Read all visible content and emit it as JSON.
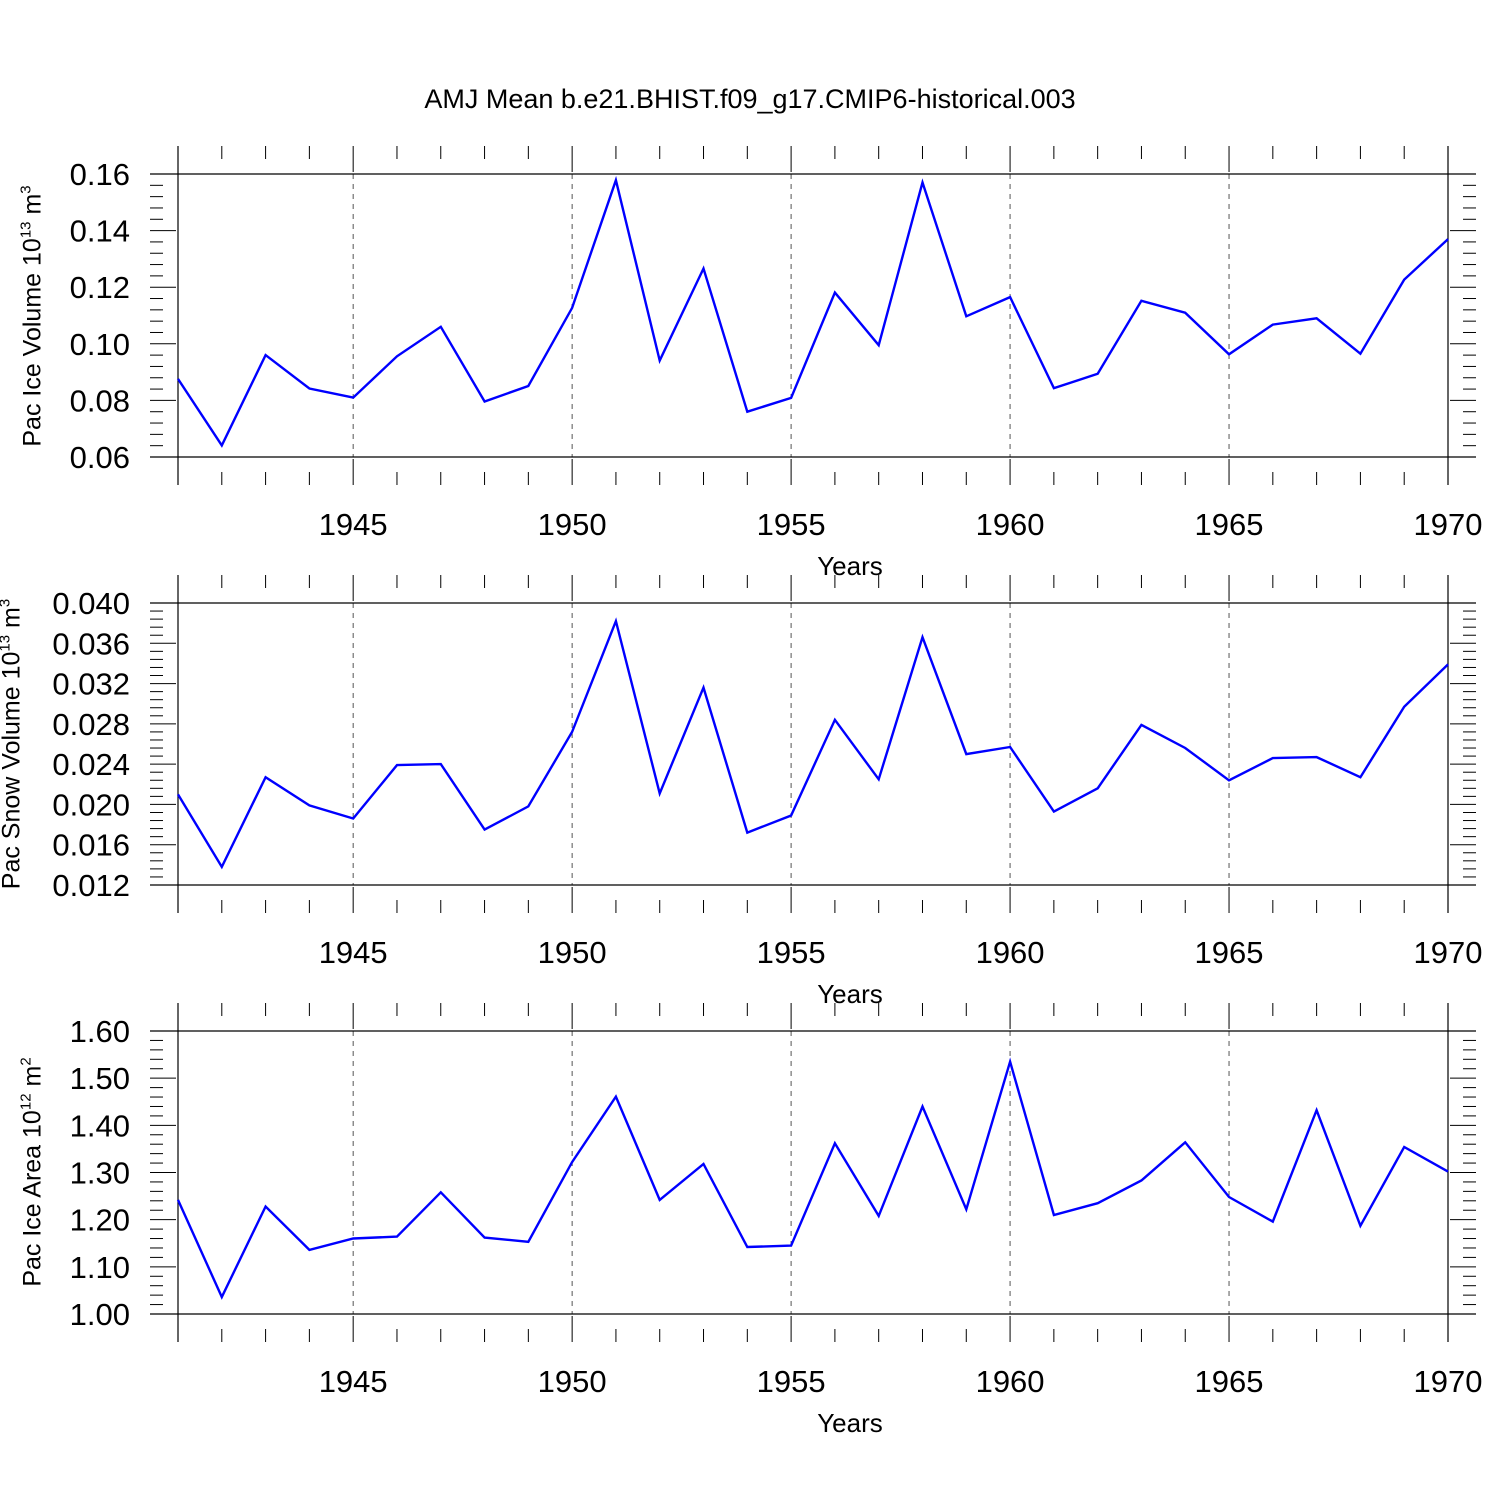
{
  "figure_title": "AMJ Mean b.e21.BHIST.f09_g17.CMIP6-historical.003",
  "colors": {
    "line": "#0000ff",
    "axes": "#000000",
    "grid": "#555555"
  },
  "chart_data": [
    {
      "type": "line",
      "title": "AMJ Mean b.e21.BHIST.f09_g17.CMIP6-historical.003",
      "xlabel": "Years",
      "ylabel_text": "Pac Ice Volume 10",
      "ylabel_exp": "13",
      "ylabel_unit": " m",
      "ylabel_unit_exp": "3",
      "xlim": [
        1941,
        1970
      ],
      "ylim": [
        0.06,
        0.16
      ],
      "yticks": [
        0.06,
        0.08,
        0.1,
        0.12,
        0.14,
        0.16
      ],
      "ytick_labels": [
        "0.06",
        "0.08",
        "0.10",
        "0.12",
        "0.14",
        "0.16"
      ],
      "xticks": [
        1945,
        1950,
        1955,
        1960,
        1965,
        1970
      ],
      "xtick_labels": [
        "1945",
        "1950",
        "1955",
        "1960",
        "1965",
        "1970"
      ],
      "grid": "vertical dashed at major x ticks",
      "x": [
        1941,
        1942,
        1943,
        1944,
        1945,
        1946,
        1947,
        1948,
        1949,
        1950,
        1951,
        1952,
        1953,
        1954,
        1955,
        1956,
        1957,
        1958,
        1959,
        1960,
        1961,
        1962,
        1963,
        1964,
        1965,
        1966,
        1967,
        1968,
        1969,
        1970
      ],
      "series": [
        {
          "name": "Pac Ice Volume",
          "values": [
            0.0876,
            0.0641,
            0.096,
            0.0842,
            0.081,
            0.0956,
            0.106,
            0.0796,
            0.0851,
            0.1127,
            0.1578,
            0.0941,
            0.1266,
            0.076,
            0.0809,
            0.1181,
            0.0995,
            0.157,
            0.1097,
            0.1165,
            0.0843,
            0.0894,
            0.1152,
            0.111,
            0.0963,
            0.1068,
            0.109,
            0.0965,
            0.1227,
            0.137
          ]
        }
      ]
    },
    {
      "type": "line",
      "xlabel": "Years",
      "ylabel_text": "Pac Snow Volume 10",
      "ylabel_exp": "13",
      "ylabel_unit": " m",
      "ylabel_unit_exp": "3",
      "xlim": [
        1941,
        1970
      ],
      "ylim": [
        0.012,
        0.04
      ],
      "yticks": [
        0.012,
        0.016,
        0.02,
        0.024,
        0.028,
        0.032,
        0.036,
        0.04
      ],
      "ytick_labels": [
        "0.012",
        "0.016",
        "0.020",
        "0.024",
        "0.028",
        "0.032",
        "0.036",
        "0.040"
      ],
      "xticks": [
        1945,
        1950,
        1955,
        1960,
        1965,
        1970
      ],
      "xtick_labels": [
        "1945",
        "1950",
        "1955",
        "1960",
        "1965",
        "1970"
      ],
      "grid": "vertical dashed at major x ticks",
      "x": [
        1941,
        1942,
        1943,
        1944,
        1945,
        1946,
        1947,
        1948,
        1949,
        1950,
        1951,
        1952,
        1953,
        1954,
        1955,
        1956,
        1957,
        1958,
        1959,
        1960,
        1961,
        1962,
        1963,
        1964,
        1965,
        1966,
        1967,
        1968,
        1969,
        1970
      ],
      "series": [
        {
          "name": "Pac Snow Volume",
          "values": [
            0.021,
            0.0138,
            0.0227,
            0.0199,
            0.0186,
            0.0239,
            0.024,
            0.0175,
            0.0198,
            0.0272,
            0.0382,
            0.0211,
            0.0316,
            0.0172,
            0.0189,
            0.0284,
            0.0225,
            0.0366,
            0.025,
            0.0257,
            0.0193,
            0.0216,
            0.0279,
            0.0256,
            0.0224,
            0.0246,
            0.0247,
            0.0227,
            0.0297,
            0.0339
          ]
        }
      ]
    },
    {
      "type": "line",
      "xlabel": "Years",
      "ylabel_text": "Pac Ice Area 10",
      "ylabel_exp": "12",
      "ylabel_unit": " m",
      "ylabel_unit_exp": "2",
      "xlim": [
        1941,
        1970
      ],
      "ylim": [
        1.0,
        1.6
      ],
      "yticks": [
        1.0,
        1.1,
        1.2,
        1.3,
        1.4,
        1.5,
        1.6
      ],
      "ytick_labels": [
        "1.00",
        "1.10",
        "1.20",
        "1.30",
        "1.40",
        "1.50",
        "1.60"
      ],
      "xticks": [
        1945,
        1950,
        1955,
        1960,
        1965,
        1970
      ],
      "xtick_labels": [
        "1945",
        "1950",
        "1955",
        "1960",
        "1965",
        "1970"
      ],
      "grid": "vertical dashed at major x ticks",
      "x": [
        1941,
        1942,
        1943,
        1944,
        1945,
        1946,
        1947,
        1948,
        1949,
        1950,
        1951,
        1952,
        1953,
        1954,
        1955,
        1956,
        1957,
        1958,
        1959,
        1960,
        1961,
        1962,
        1963,
        1964,
        1965,
        1966,
        1967,
        1968,
        1969,
        1970
      ],
      "series": [
        {
          "name": "Pac Ice Area",
          "values": [
            1.242,
            1.036,
            1.228,
            1.136,
            1.16,
            1.164,
            1.258,
            1.162,
            1.153,
            1.322,
            1.461,
            1.242,
            1.318,
            1.142,
            1.145,
            1.362,
            1.208,
            1.44,
            1.222,
            1.535,
            1.21,
            1.235,
            1.283,
            1.364,
            1.248,
            1.196,
            1.432,
            1.187,
            1.354,
            1.302
          ]
        }
      ]
    }
  ]
}
